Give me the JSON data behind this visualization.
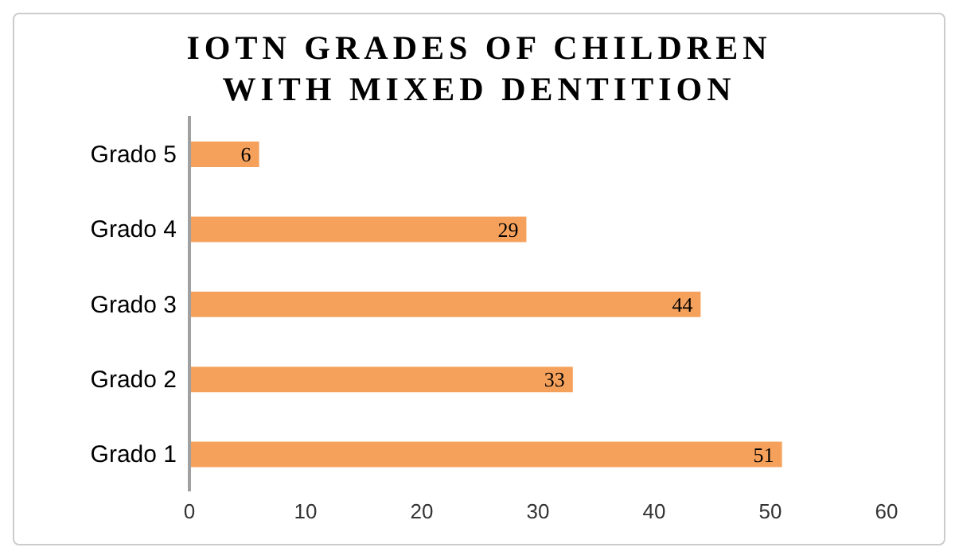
{
  "chart_data": {
    "type": "bar",
    "orientation": "horizontal",
    "title": "IOTN GRADES OF CHILDREN WITH MIXED DENTITION",
    "categories": [
      "Grado 5",
      "Grado 4",
      "Grado 3",
      "Grado 2",
      "Grado 1"
    ],
    "values": [
      6,
      29,
      44,
      33,
      51
    ],
    "color": "#f5a15c",
    "xlim": [
      0,
      60
    ],
    "xticks": [
      0,
      10,
      20,
      30,
      40,
      50,
      60
    ],
    "grid": false,
    "data_labels": true
  }
}
